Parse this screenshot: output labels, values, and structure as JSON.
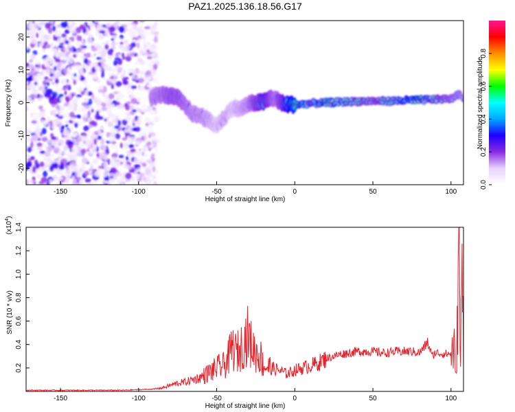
{
  "figure": {
    "title": "PAZ1.2025.136.18.56.G17"
  },
  "chart_data": [
    {
      "type": "heatmap",
      "title": "PAZ1.2025.136.18.56.G17",
      "xlabel": "Height of straight line (km)",
      "ylabel": "Frequency (Hz)",
      "xlim": [
        -172,
        108
      ],
      "ylim": [
        -25,
        25
      ],
      "xticks": [
        -150,
        -100,
        -50,
        0,
        50,
        100
      ],
      "xtick_labels": [
        "-150",
        "-100",
        "-50",
        "0",
        "50",
        "100"
      ],
      "yticks": [
        -20,
        -10,
        0,
        10,
        20
      ],
      "ytick_labels": [
        "-20",
        "-10",
        "0",
        "10",
        "20"
      ],
      "colorbar": {
        "label": "Normalized spectral amplitude",
        "range": [
          0,
          1
        ],
        "ticks": [
          0.0,
          0.2,
          0.4,
          0.6,
          0.8
        ],
        "tick_labels": [
          "0.0",
          "0.2",
          "0.4",
          "0.6",
          "0.8"
        ],
        "colors": [
          "#ffffff",
          "#e8d2ff",
          "#8a2be2",
          "#1f00ff",
          "#00a8ff",
          "#00ffff",
          "#00ff00",
          "#ffff00",
          "#ff8c00",
          "#ff0000",
          "#ff1493"
        ]
      },
      "noise_region": {
        "x": [
          -172,
          -88
        ],
        "y": [
          -25,
          25
        ]
      },
      "ridge": {
        "x": [
          -92,
          -85,
          -80,
          -75,
          -70,
          -65,
          -60,
          -55,
          -50,
          -45,
          -40,
          -35,
          -30,
          -25,
          -20,
          -15,
          -12,
          -8,
          -5,
          0,
          5,
          10,
          20,
          30,
          40,
          50,
          60,
          70,
          80,
          90,
          100,
          105,
          108
        ],
        "y": [
          1.5,
          2.5,
          2.0,
          1.5,
          -1.0,
          -3.5,
          -4.0,
          -5.5,
          -7.0,
          -4.5,
          -1.5,
          -2.0,
          -0.5,
          0.0,
          0.2,
          1.5,
          1.0,
          -0.2,
          -0.5,
          -0.6,
          -0.5,
          -0.2,
          0.0,
          0.2,
          0.4,
          0.5,
          0.5,
          0.7,
          0.8,
          1.0,
          1.2,
          2.5,
          1.5
        ],
        "amplitude": [
          0.4,
          0.45,
          0.5,
          0.5,
          0.45,
          0.4,
          0.4,
          0.35,
          0.3,
          0.35,
          0.3,
          0.35,
          0.4,
          0.55,
          0.7,
          0.5,
          0.45,
          0.6,
          0.8,
          0.95,
          0.85,
          0.7,
          0.9,
          0.7,
          0.65,
          0.55,
          0.65,
          0.8,
          0.9,
          0.6,
          0.5,
          0.45,
          0.4
        ]
      }
    },
    {
      "type": "line",
      "xlabel": "Height of straight line (km)",
      "ylabel": "SNR (10 * v/v)",
      "scale_label": "(x10",
      "scale_exponent": "4",
      "xlim": [
        -172,
        108
      ],
      "ylim": [
        0,
        1.4
      ],
      "xticks": [
        -150,
        -100,
        -50,
        0,
        50,
        100
      ],
      "xtick_labels": [
        "-150",
        "-100",
        "-50",
        "0",
        "50",
        "100"
      ],
      "yticks": [
        0.2,
        0.4,
        0.6,
        0.8,
        1.0,
        1.2,
        1.4
      ],
      "ytick_labels": [
        "0.2",
        "0.4",
        "0.6",
        "0.8",
        "1.0",
        "1.2",
        "1.4"
      ],
      "color": "#e8202a",
      "series": [
        {
          "x": [
            -172,
            -160,
            -150,
            -140,
            -130,
            -120,
            -110,
            -100,
            -90,
            -85,
            -80,
            -75,
            -70,
            -65,
            -60,
            -55,
            -52,
            -50,
            -45,
            -42,
            -40,
            -38,
            -35,
            -33,
            -30,
            -28,
            -25,
            -22,
            -20,
            -15,
            -10,
            -5,
            0,
            5,
            10,
            15,
            20,
            25,
            30,
            35,
            40,
            45,
            50,
            55,
            60,
            65,
            70,
            75,
            80,
            83,
            85,
            88,
            90,
            95,
            100,
            102,
            103,
            104,
            105,
            106,
            107,
            108
          ],
          "y": [
            0.01,
            0.01,
            0.01,
            0.01,
            0.01,
            0.01,
            0.01,
            0.015,
            0.02,
            0.03,
            0.05,
            0.07,
            0.08,
            0.1,
            0.12,
            0.16,
            0.18,
            0.2,
            0.22,
            0.3,
            0.38,
            0.33,
            0.35,
            0.42,
            0.48,
            0.4,
            0.33,
            0.3,
            0.22,
            0.2,
            0.18,
            0.15,
            0.18,
            0.2,
            0.22,
            0.24,
            0.28,
            0.3,
            0.32,
            0.33,
            0.34,
            0.34,
            0.34,
            0.33,
            0.33,
            0.34,
            0.34,
            0.34,
            0.33,
            0.38,
            0.42,
            0.3,
            0.33,
            0.32,
            0.32,
            0.38,
            0.1,
            0.5,
            1.4,
            0.2,
            0.95,
            0.5
          ]
        }
      ]
    }
  ]
}
